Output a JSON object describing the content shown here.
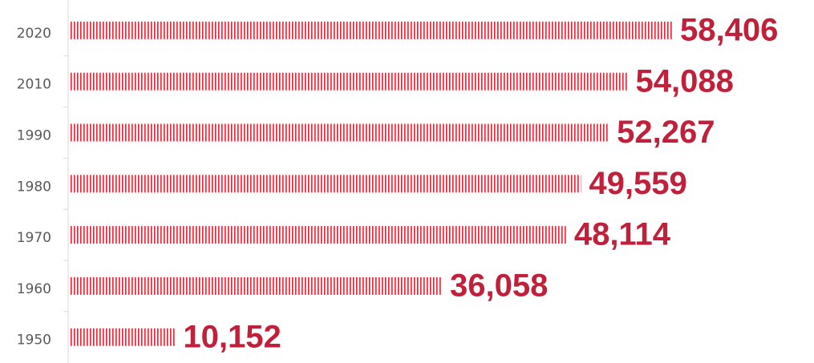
{
  "chart_data": {
    "type": "hbar",
    "categories": [
      "2020",
      "2010",
      "1990",
      "1980",
      "1970",
      "1960",
      "1950"
    ],
    "values": [
      58406,
      54088,
      52267,
      49559,
      48114,
      36058,
      10152
    ],
    "value_labels": [
      "58,406",
      "54,088",
      "52,267",
      "49,559",
      "48,114",
      "36,058",
      "10,152"
    ],
    "color": "#e8202f",
    "label_color": "#c0203a"
  }
}
